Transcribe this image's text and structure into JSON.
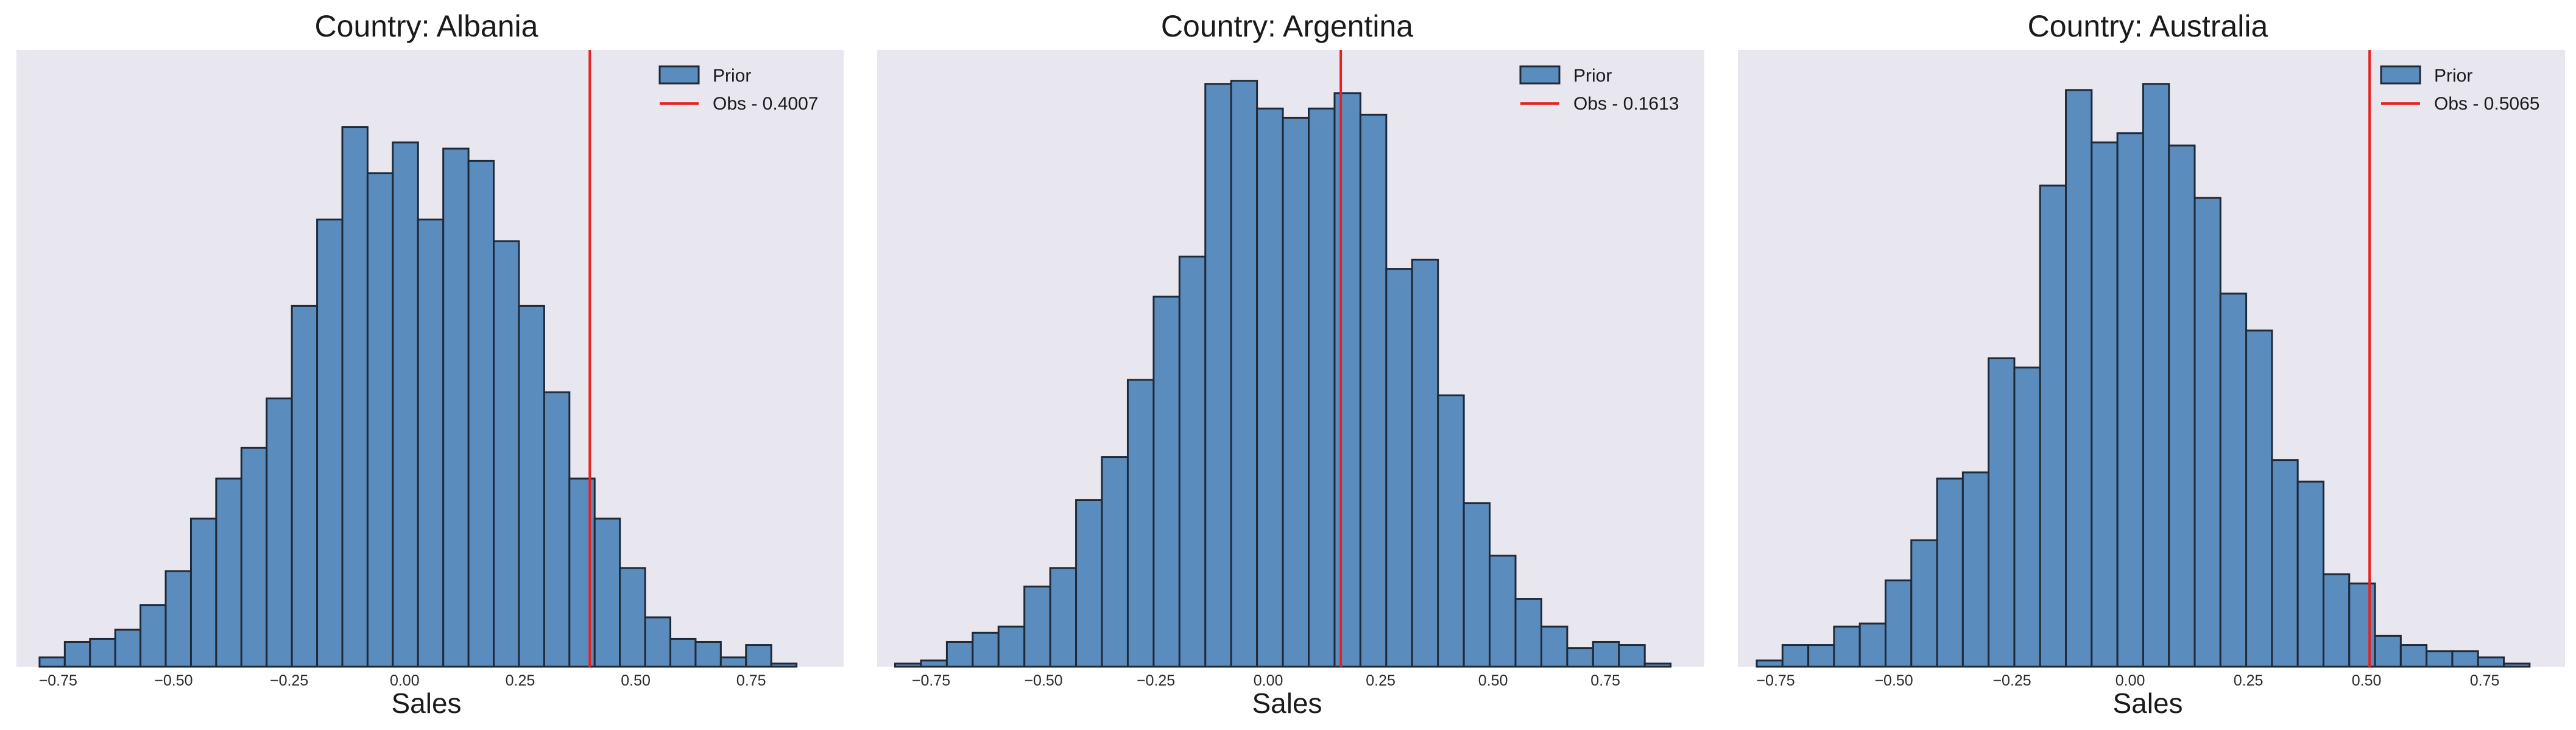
{
  "chart_data": [
    {
      "type": "histogram",
      "title": "Country: Albania",
      "xlabel": "Sales",
      "xlim": [
        -0.84,
        0.95
      ],
      "ylim": [
        0,
        100
      ],
      "xticks": [
        -0.75,
        -0.5,
        -0.25,
        0.0,
        0.25,
        0.5,
        0.75
      ],
      "xtick_labels": [
        "−0.75",
        "−0.50",
        "−0.25",
        "0.00",
        "0.25",
        "0.50",
        "0.75"
      ],
      "bin_start": -0.79,
      "bin_width": 0.0546,
      "counts": [
        1.5,
        4,
        4.5,
        6,
        10,
        15.5,
        24,
        30.5,
        35.5,
        43.5,
        58.5,
        72.5,
        87.5,
        80,
        85,
        72.5,
        84,
        82,
        69,
        58.5,
        44.5,
        30.5,
        24,
        16,
        8,
        4.5,
        4,
        1.5,
        3.5,
        0.5
      ],
      "obs_value": 0.4007,
      "legend": [
        "Prior",
        "Obs - 0.4007"
      ]
    },
    {
      "type": "histogram",
      "title": "Country: Argentina",
      "xlabel": "Sales",
      "xlim": [
        -0.87,
        0.97
      ],
      "ylim": [
        0,
        100
      ],
      "xticks": [
        -0.75,
        -0.5,
        -0.25,
        0.0,
        0.25,
        0.5,
        0.75
      ],
      "xtick_labels": [
        "−0.75",
        "−0.50",
        "−0.25",
        "0.00",
        "0.25",
        "0.50",
        "0.75"
      ],
      "bin_start": -0.83,
      "bin_width": 0.0575,
      "counts": [
        0.5,
        1,
        4,
        5.5,
        6.5,
        13,
        16,
        27,
        34,
        46.5,
        60,
        66.5,
        94.5,
        95,
        90.5,
        89,
        90.5,
        93,
        89.5,
        64.5,
        66,
        44,
        26.5,
        18,
        11,
        6.5,
        3,
        4,
        3.5,
        0.5
      ],
      "obs_value": 0.1613,
      "legend": [
        "Prior",
        "Obs - 0.1613"
      ]
    },
    {
      "type": "histogram",
      "title": "Country: Australia",
      "xlabel": "Sales",
      "xlim": [
        -0.83,
        0.92
      ],
      "ylim": [
        0,
        100
      ],
      "xticks": [
        -0.75,
        -0.5,
        -0.25,
        0.0,
        0.25,
        0.5,
        0.75
      ],
      "xtick_labels": [
        "−0.75",
        "−0.50",
        "−0.25",
        "0.00",
        "0.25",
        "0.50",
        "0.75"
      ],
      "bin_start": -0.79,
      "bin_width": 0.0545,
      "counts": [
        1,
        3.5,
        3.5,
        6.5,
        7,
        14,
        20.5,
        30.5,
        31.5,
        50,
        48.5,
        78,
        93.5,
        85,
        86.5,
        94.5,
        84.5,
        76,
        60.5,
        54.5,
        33.5,
        30,
        15,
        13.5,
        5,
        3.5,
        2.5,
        2.5,
        1.5,
        0.5
      ],
      "obs_value": 0.5065,
      "legend": [
        "Prior",
        "Obs - 0.5065"
      ]
    }
  ],
  "colors": {
    "axes_bg": "#e8e6ef",
    "bar_fill": "#5b8cbe",
    "bar_edge": "#1f2a38",
    "obs_line": "#e52222"
  }
}
